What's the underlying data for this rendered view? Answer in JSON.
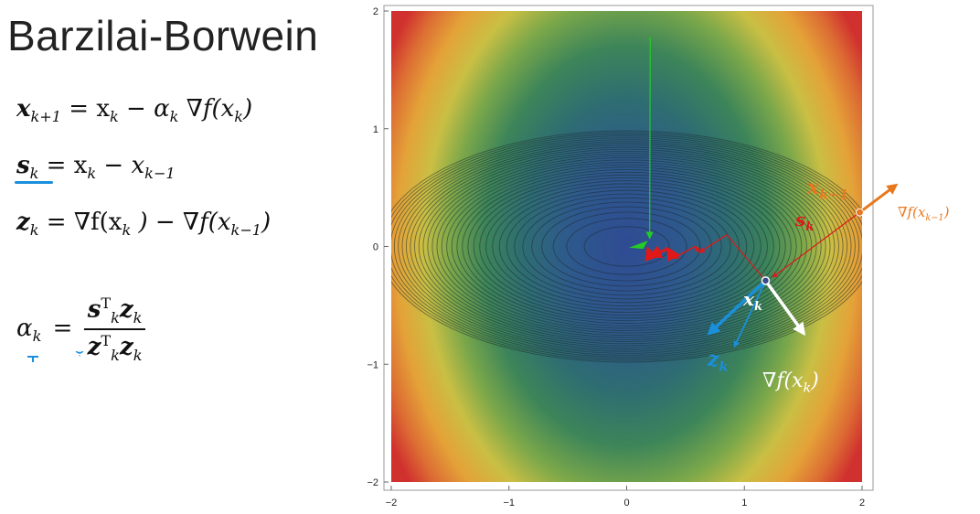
{
  "title": "Barzilai-Borwein",
  "equations": {
    "update": {
      "lhs": "x",
      "lhs_sub": "k+1",
      "rhs": "= x",
      "rhs_sub": "k",
      "rest": " − α",
      "rest_sub": "k",
      "tail": "∇f(x",
      "tail_sub": "k",
      "close": ")"
    },
    "s_def": {
      "lhs": "s",
      "lhs_sub": "k",
      "rhs": "= x",
      "rhs_sub": "k",
      "rest": " − x",
      "rest_sub": "k−1"
    },
    "z_def": {
      "lhs": "z",
      "lhs_sub": "k",
      "rhs": "= ∇f(x",
      "rhs_sub": "k",
      "rest": ") − ∇f(x",
      "rest_sub": "k−1",
      "close": ")"
    },
    "alpha": {
      "lhs": "α",
      "lhs_sub": "k",
      "eq": "=",
      "num": "s",
      "num_sup": "T",
      "num_sub": "k",
      "num_b": "z",
      "num_b_sub": "k",
      "den": "z",
      "den_sup": "T",
      "den_sub": "k",
      "den_b": "z",
      "den_b_sub": "k"
    }
  },
  "chart_data": {
    "type": "contour",
    "xlim": [
      -2,
      2
    ],
    "ylim": [
      -2,
      2
    ],
    "x_ticks": [
      "−2",
      "−1",
      "0",
      "1",
      "2"
    ],
    "y_ticks": [
      "2",
      "1",
      "0",
      "−1",
      "−2"
    ],
    "center": [
      0,
      0
    ],
    "path_red": [
      [
        0.85,
        0.1
      ],
      [
        0.62,
        -0.05
      ],
      [
        0.58,
        0.0
      ],
      [
        0.4,
        -0.1
      ],
      [
        0.35,
        -0.02
      ],
      [
        0.2,
        -0.08
      ],
      [
        0.18,
        -0.02
      ]
    ],
    "green_start": [
      0.2,
      1.78
    ],
    "green_end": [
      0.18,
      -0.02
    ],
    "x_prev": [
      1.98,
      0.29
    ],
    "x_k": [
      1.18,
      -0.29
    ],
    "annotations": {
      "x_prev_label": "x",
      "x_prev_sub": "k−1",
      "s_label": "s",
      "s_sub": "k",
      "xk_label": "x",
      "xk_sub": "k",
      "z_label": "z",
      "z_sub": "k",
      "grad_k_label": "∇f(x",
      "grad_k_sub": "k",
      "grad_k_close": ")",
      "grad_prev_label": "∇f(x",
      "grad_prev_sub": "k−1",
      "grad_prev_close": ")"
    },
    "colors": {
      "red": "#e01818",
      "green": "#22cc22",
      "orange": "#e8781e",
      "blue": "#1a8fdc",
      "white": "#ffffff"
    }
  }
}
